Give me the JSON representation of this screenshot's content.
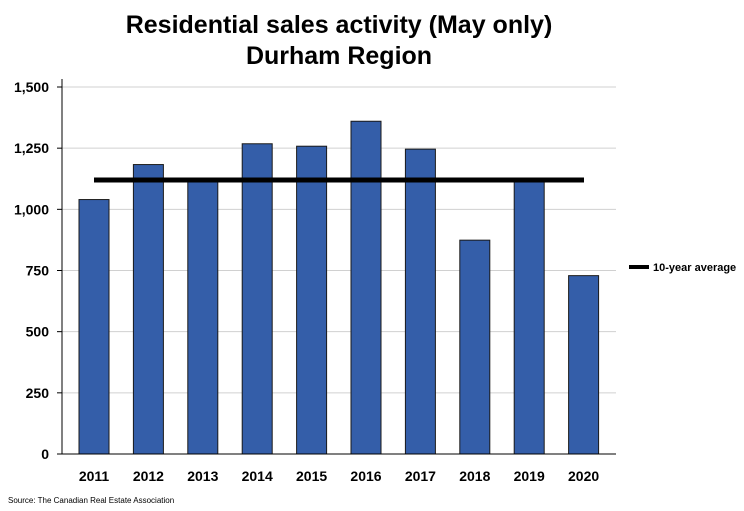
{
  "chart_data": {
    "type": "bar",
    "title": "Residential sales activity (May only)",
    "subtitle": "Durham Region",
    "categories": [
      "2011",
      "2012",
      "2013",
      "2014",
      "2015",
      "2016",
      "2017",
      "2018",
      "2019",
      "2020"
    ],
    "values": [
      1040,
      1183,
      1118,
      1268,
      1258,
      1360,
      1246,
      874,
      1120,
      729
    ],
    "ylim": [
      0,
      1500
    ],
    "yticks": [
      0,
      250,
      500,
      750,
      1000,
      1250,
      1500
    ],
    "ytick_labels": [
      "0",
      "250",
      "500",
      "750",
      "1,000",
      "1,250",
      "1,500"
    ],
    "grid": true,
    "average_line": {
      "label": "10-year average",
      "value": 1120
    },
    "legend": {
      "placement": "right",
      "entries": [
        "10-year average"
      ]
    },
    "colors": {
      "bar": "#345ea9",
      "bar_border": "#1a1a1a",
      "average": "#000000",
      "grid": "#d0d0d0"
    },
    "source": "Source: The Canadian Real Estate Association"
  }
}
